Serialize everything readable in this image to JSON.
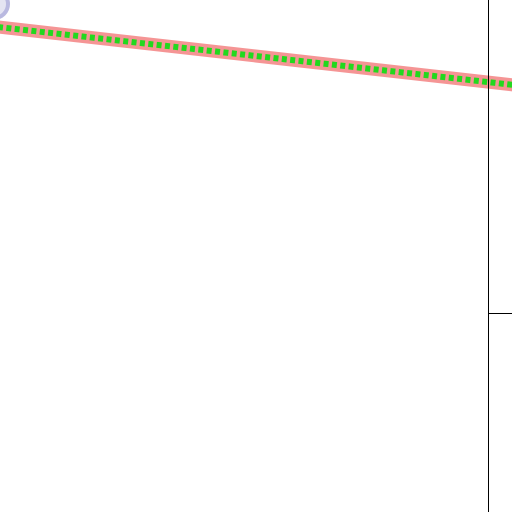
{
  "map": {
    "background_color": "#ffffff",
    "boundary_color": "#000000",
    "route_underlay_color": "#f59595",
    "route_line_color": "#22d81e",
    "route_line_style": "dotted",
    "route_start_marker_color": "#b9b9e0",
    "route_start_marker_outline": "#8c8cc8"
  }
}
